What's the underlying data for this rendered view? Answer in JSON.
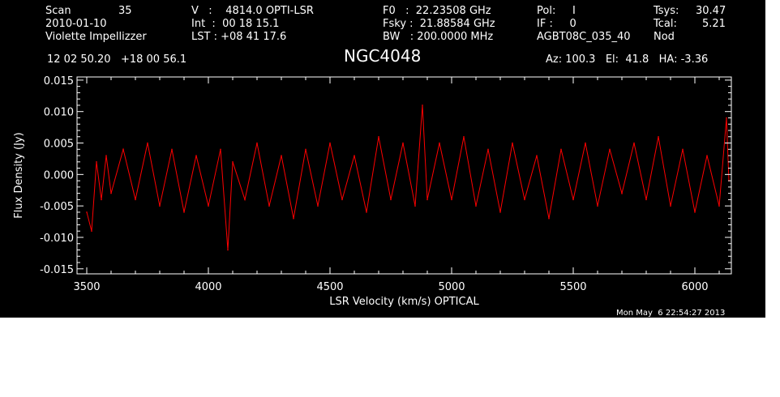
{
  "header": {
    "scan_label": "Scan",
    "scan_value": "35",
    "date": "2010-01-10",
    "observer": "Violette Impellizzer",
    "v_line": "V   :    4814.0 OPTI-LSR",
    "int_line": "Int  :  00 18 15.1",
    "lst_line": "LST : +08 41 17.6",
    "f0_line": "F0   :  22.23508 GHz",
    "fsky_line": "Fsky :  21.88584 GHz",
    "bw_line": "BW   : 200.0000 MHz",
    "pol_line": "Pol:     I",
    "if_line": "IF :     0",
    "proj_line": "AGBT08C_035_40",
    "tsys_label": "Tsys:",
    "tsys_value": "30.47",
    "tcal_label": "Tcal:",
    "tcal_value": "5.21",
    "mode": "Nod",
    "coords": "12 02 50.20   +18 00 56.1",
    "source": "NGC4048",
    "az_el_ha": "Az: 100.3   El:  41.8   HA: -3.36",
    "timestamp": "Mon May  6 22:54:27 2013"
  },
  "colors": {
    "background": "#000000",
    "axes": "#ffffff",
    "trace": "#ff0000"
  },
  "chart_data": {
    "type": "line",
    "xlabel": "LSR Velocity (km/s) OPTICAL",
    "ylabel": "Flux Density (Jy)",
    "xlim": [
      3460,
      6150
    ],
    "ylim": [
      -0.0158,
      0.0155
    ],
    "x_ticks": [
      3500,
      4000,
      4500,
      5000,
      5500,
      6000
    ],
    "y_ticks": [
      -0.015,
      -0.01,
      -0.005,
      0.0,
      0.005,
      0.01,
      0.015
    ],
    "x_tick_labels": [
      "3500",
      "4000",
      "4500",
      "5000",
      "5500",
      "6000"
    ],
    "y_tick_labels": [
      "-0.015",
      "-0.010",
      "-0.005",
      "0.000",
      "0.005",
      "0.010",
      "0.015"
    ],
    "series": [
      {
        "x": [
          3500,
          3520,
          3540,
          3560,
          3580,
          3600,
          3650,
          3700,
          3750,
          3800,
          3850,
          3900,
          3950,
          4000,
          4050,
          4080,
          4100,
          4150,
          4200,
          4250,
          4300,
          4350,
          4400,
          4450,
          4500,
          4550,
          4600,
          4650,
          4700,
          4750,
          4800,
          4850,
          4880,
          4900,
          4950,
          5000,
          5050,
          5100,
          5150,
          5200,
          5250,
          5300,
          5350,
          5400,
          5450,
          5500,
          5550,
          5600,
          5650,
          5700,
          5750,
          5800,
          5850,
          5900,
          5950,
          6000,
          6050,
          6100,
          6130,
          6140
        ],
        "y": [
          -0.006,
          -0.009,
          0.002,
          -0.004,
          0.003,
          -0.003,
          0.004,
          -0.004,
          0.005,
          -0.005,
          0.004,
          -0.006,
          0.003,
          -0.005,
          0.004,
          -0.012,
          0.002,
          -0.004,
          0.005,
          -0.005,
          0.003,
          -0.007,
          0.004,
          -0.005,
          0.005,
          -0.004,
          0.003,
          -0.006,
          0.006,
          -0.004,
          0.005,
          -0.005,
          0.011,
          -0.004,
          0.005,
          -0.004,
          0.006,
          -0.005,
          0.004,
          -0.006,
          0.005,
          -0.004,
          0.003,
          -0.007,
          0.004,
          -0.004,
          0.005,
          -0.005,
          0.004,
          -0.003,
          0.005,
          -0.004,
          0.006,
          -0.005,
          0.004,
          -0.006,
          0.003,
          -0.005,
          0.009,
          -0.001
        ]
      }
    ]
  }
}
